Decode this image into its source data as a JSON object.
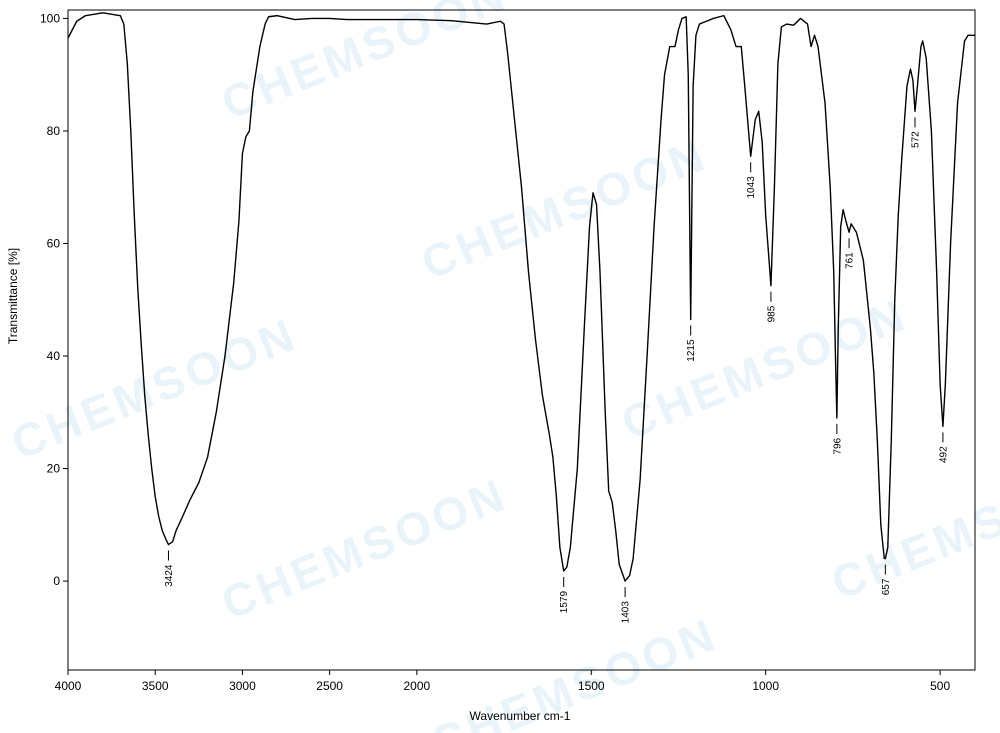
{
  "chart_data": {
    "type": "line",
    "xlabel": "Wavenumber  cm-1",
    "ylabel": "Transmittance [%]",
    "watermark": "CHEMSOON",
    "color": "#000000",
    "xlim": [
      4000,
      400
    ],
    "xbreak": 2000,
    "ylim": [
      -15.8,
      101.5
    ],
    "xticks": [
      4000,
      3500,
      3000,
      2500,
      2000,
      1500,
      1000,
      500
    ],
    "yticks": [
      0,
      20,
      40,
      60,
      80,
      100
    ],
    "x": [
      4000,
      3950,
      3900,
      3800,
      3700,
      3680,
      3660,
      3640,
      3620,
      3600,
      3580,
      3560,
      3540,
      3520,
      3500,
      3480,
      3460,
      3440,
      3424,
      3400,
      3380,
      3350,
      3300,
      3250,
      3200,
      3150,
      3100,
      3050,
      3020,
      3000,
      2980,
      2960,
      2940,
      2900,
      2870,
      2850,
      2800,
      2700,
      2600,
      2500,
      2400,
      2200,
      2000,
      1900,
      1800,
      1760,
      1750,
      1740,
      1720,
      1700,
      1680,
      1660,
      1640,
      1620,
      1610,
      1600,
      1590,
      1579,
      1570,
      1560,
      1540,
      1520,
      1505,
      1495,
      1485,
      1475,
      1460,
      1450,
      1440,
      1430,
      1420,
      1403,
      1390,
      1380,
      1360,
      1340,
      1320,
      1300,
      1290,
      1275,
      1260,
      1250,
      1240,
      1228,
      1222,
      1215,
      1208,
      1200,
      1190,
      1170,
      1150,
      1120,
      1100,
      1085,
      1070,
      1060,
      1043,
      1030,
      1020,
      1010,
      1000,
      985,
      975,
      965,
      955,
      940,
      920,
      900,
      880,
      870,
      860,
      850,
      830,
      815,
      805,
      800,
      796,
      792,
      785,
      778,
      770,
      761,
      755,
      740,
      720,
      700,
      690,
      680,
      670,
      660,
      657,
      650,
      640,
      630,
      620,
      610,
      595,
      585,
      578,
      572,
      565,
      555,
      550,
      540,
      525,
      510,
      500,
      492,
      485,
      470,
      450,
      430,
      420,
      410,
      400
    ],
    "values": [
      96.5,
      99.5,
      100.5,
      101,
      100.5,
      99,
      92,
      80,
      65,
      52,
      42,
      33,
      26,
      20,
      15,
      11.5,
      9,
      7.5,
      6.5,
      7,
      9,
      11,
      14.5,
      17.5,
      22,
      30,
      40,
      53,
      64,
      76,
      79,
      80,
      87,
      95,
      99,
      100.3,
      100.5,
      99.8,
      100,
      100,
      99.8,
      99.8,
      99.8,
      99.6,
      99,
      99.5,
      99,
      94,
      82,
      70,
      55,
      43,
      33,
      26,
      22,
      15,
      6,
      1.8,
      2.5,
      6,
      20,
      45,
      63,
      69,
      67,
      55,
      30,
      16,
      14,
      9,
      3,
      0,
      1,
      4,
      18,
      40,
      63,
      82,
      90,
      95,
      95,
      98,
      100,
      100.3,
      90,
      46.5,
      88,
      97,
      99,
      99.5,
      100,
      100.5,
      98,
      95,
      95,
      88,
      75.5,
      82,
      83.5,
      78,
      65,
      52.5,
      70,
      92,
      98.5,
      99,
      98.8,
      100,
      99,
      95,
      97,
      95,
      85,
      70,
      55,
      40,
      29,
      45,
      63,
      66,
      64,
      62,
      63.5,
      62,
      57,
      45,
      37,
      25,
      10,
      4,
      4,
      6,
      25,
      50,
      65,
      75,
      88,
      91,
      89,
      83.5,
      88,
      95,
      96,
      93,
      80,
      55,
      35,
      27.5,
      35,
      60,
      85,
      96,
      97,
      97,
      97
    ],
    "peaks": [
      {
        "x": 3424,
        "y": 6.5
      },
      {
        "x": 1579,
        "y": 1.8
      },
      {
        "x": 1403,
        "y": 0
      },
      {
        "x": 1215,
        "y": 46.5
      },
      {
        "x": 1043,
        "y": 75.5
      },
      {
        "x": 985,
        "y": 52.5
      },
      {
        "x": 796,
        "y": 29
      },
      {
        "x": 761,
        "y": 62
      },
      {
        "x": 657,
        "y": 4
      },
      {
        "x": 572,
        "y": 83.5
      },
      {
        "x": 492,
        "y": 27.5
      }
    ]
  }
}
